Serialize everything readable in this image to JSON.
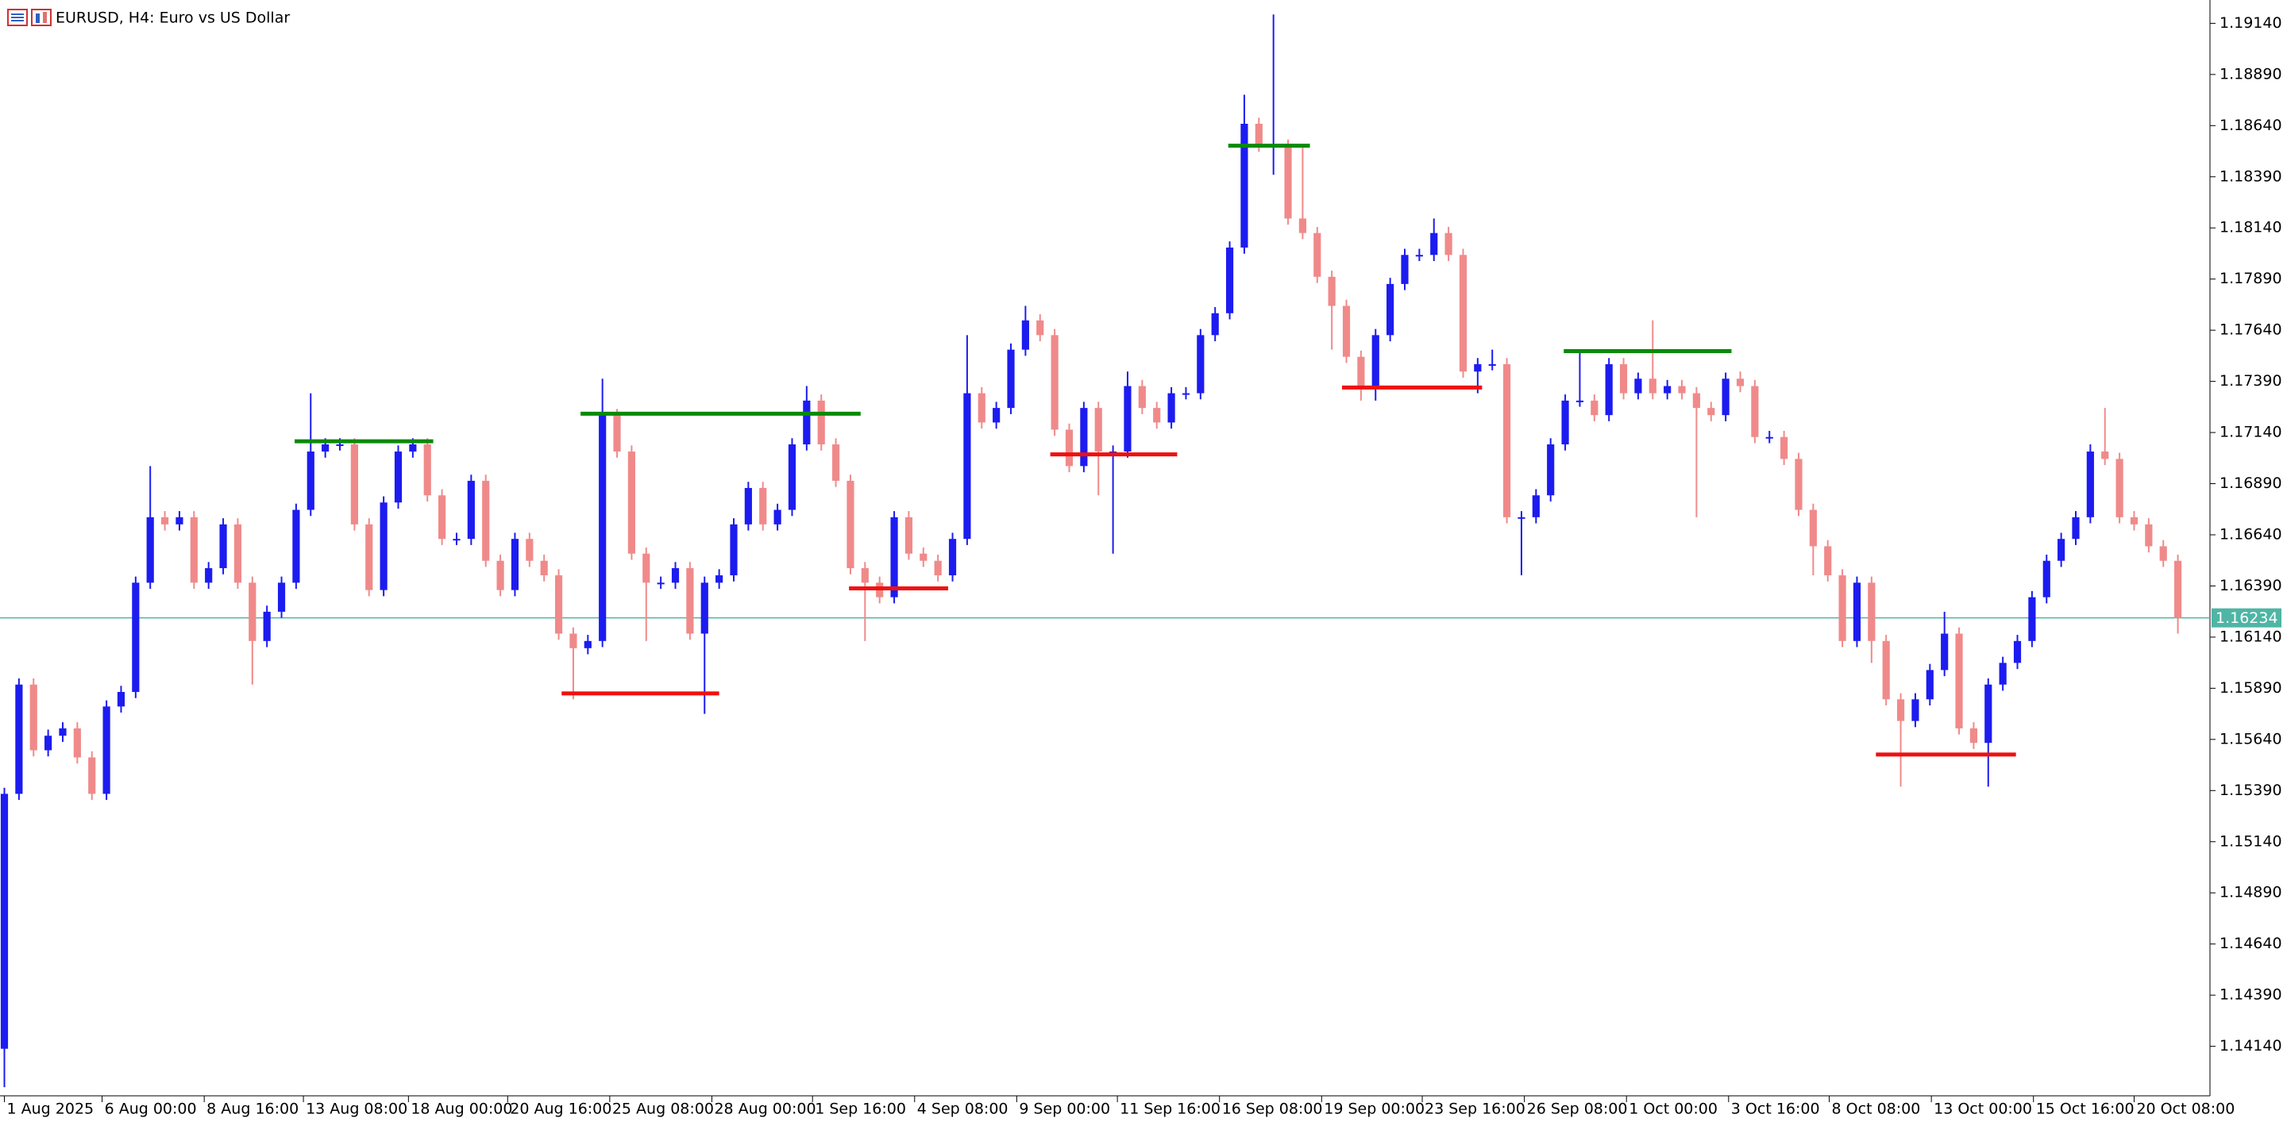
{
  "chart_data": {
    "type": "candlestick",
    "title": "EURUSD, H4:  Euro vs US Dollar",
    "up_color": "#1c1cf0",
    "down_color": "#f08a8a",
    "open": [
      1.14128,
      1.15374,
      1.15908,
      1.15587,
      1.15658,
      1.15694,
      1.15552,
      1.15374,
      1.15801,
      1.15872,
      1.16406,
      1.16726,
      1.16691,
      1.16726,
      1.16406,
      1.16477,
      1.16691,
      1.16406,
      1.16121,
      1.16264,
      1.16406,
      1.16762,
      1.17047,
      1.17082,
      1.17082,
      1.16691,
      1.1637,
      1.16798,
      1.17047,
      1.17082,
      1.16833,
      1.1662,
      1.1662,
      1.16904,
      1.16513,
      1.1637,
      1.1662,
      1.16513,
      1.16442,
      1.16157,
      1.16086,
      1.16121,
      1.17225,
      1.17047,
      1.16548,
      1.16406,
      1.16406,
      1.16477,
      1.16157,
      1.16406,
      1.16442,
      1.16691,
      1.16869,
      1.16691,
      1.16762,
      1.17082,
      1.17296,
      1.17082,
      1.16904,
      1.16477,
      1.16406,
      1.16335,
      1.16726,
      1.16548,
      1.16513,
      1.16442,
      1.1662,
      1.17332,
      1.17189,
      1.1726,
      1.17545,
      1.17688,
      1.17616,
      1.17154,
      1.16976,
      1.1726,
      1.17047,
      1.17047,
      1.17367,
      1.1726,
      1.17189,
      1.17332,
      1.17332,
      1.17616,
      1.17723,
      1.18044,
      1.18649,
      1.18542,
      1.18542,
      1.18186,
      1.18115,
      1.17901,
      1.17759,
      1.1751,
      1.17367,
      1.17616,
      1.17866,
      1.18008,
      1.18008,
      1.18115,
      1.18008,
      1.17438,
      1.17474,
      1.17474,
      1.16726,
      1.16726,
      1.16833,
      1.17082,
      1.17296,
      1.17296,
      1.17225,
      1.17474,
      1.17332,
      1.17403,
      1.17332,
      1.17367,
      1.17332,
      1.1726,
      1.17225,
      1.17403,
      1.17367,
      1.17118,
      1.17118,
      1.17011,
      1.16762,
      1.16584,
      1.16442,
      1.16121,
      1.16406,
      1.16121,
      1.15836,
      1.1573,
      1.15836,
      1.15979,
      1.16157,
      1.15694,
      1.15623,
      1.15908,
      1.16014,
      1.16121,
      1.16335,
      1.16513,
      1.1662,
      1.16726,
      1.17047,
      1.17011,
      1.16726,
      1.16691,
      1.16584,
      1.16513
    ],
    "high": [
      1.15404,
      1.15938,
      1.15938,
      1.15688,
      1.15724,
      1.15724,
      1.15582,
      1.15831,
      1.15902,
      1.16436,
      1.16976,
      1.16756,
      1.16756,
      1.16756,
      1.16507,
      1.16721,
      1.16721,
      1.16436,
      1.16294,
      1.16436,
      1.16792,
      1.17332,
      1.17112,
      1.17112,
      1.17112,
      1.16721,
      1.16828,
      1.17077,
      1.17112,
      1.17112,
      1.16863,
      1.1665,
      1.16934,
      1.16934,
      1.16543,
      1.1665,
      1.1665,
      1.16543,
      1.16472,
      1.16187,
      1.16151,
      1.17403,
      1.17255,
      1.17077,
      1.16578,
      1.16436,
      1.16507,
      1.16507,
      1.16436,
      1.16472,
      1.16721,
      1.16899,
      1.16899,
      1.16792,
      1.17112,
      1.17367,
      1.17326,
      1.17112,
      1.16934,
      1.16507,
      1.16436,
      1.16756,
      1.16756,
      1.16578,
      1.16543,
      1.1665,
      1.17616,
      1.17362,
      1.1729,
      1.17575,
      1.17759,
      1.17718,
      1.17646,
      1.17184,
      1.1729,
      1.1729,
      1.17077,
      1.17438,
      1.17397,
      1.1729,
      1.17362,
      1.17362,
      1.17646,
      1.17753,
      1.18074,
      1.18791,
      1.18679,
      1.19183,
      1.18572,
      1.18542,
      1.18145,
      1.17931,
      1.17789,
      1.1754,
      1.17646,
      1.17896,
      1.18038,
      1.18038,
      1.18186,
      1.18145,
      1.18038,
      1.17504,
      1.17545,
      1.17504,
      1.16756,
      1.16863,
      1.17112,
      1.17326,
      1.17545,
      1.17326,
      1.17504,
      1.17504,
      1.17433,
      1.17688,
      1.17397,
      1.17397,
      1.17362,
      1.1729,
      1.17433,
      1.17438,
      1.17397,
      1.17148,
      1.17148,
      1.17041,
      1.16792,
      1.16614,
      1.16472,
      1.16436,
      1.16436,
      1.16151,
      1.15866,
      1.15866,
      1.16009,
      1.16264,
      1.16187,
      1.15724,
      1.15938,
      1.16044,
      1.16151,
      1.16365,
      1.16543,
      1.1665,
      1.16756,
      1.17082,
      1.1726,
      1.17041,
      1.16756,
      1.16721,
      1.16614,
      1.16543
    ],
    "low": [
      1.1394,
      1.15344,
      1.15557,
      1.15557,
      1.15628,
      1.15522,
      1.15344,
      1.15344,
      1.15771,
      1.15842,
      1.16376,
      1.16661,
      1.16661,
      1.16376,
      1.16376,
      1.16447,
      1.16376,
      1.15908,
      1.16091,
      1.16234,
      1.16376,
      1.16732,
      1.17017,
      1.17052,
      1.16661,
      1.1634,
      1.1634,
      1.16768,
      1.17017,
      1.16803,
      1.1659,
      1.1659,
      1.1659,
      1.16483,
      1.1634,
      1.1634,
      1.16483,
      1.16412,
      1.16127,
      1.15836,
      1.16056,
      1.16091,
      1.17017,
      1.16518,
      1.16121,
      1.16376,
      1.16376,
      1.16127,
      1.15765,
      1.16376,
      1.16412,
      1.16661,
      1.16661,
      1.16661,
      1.16732,
      1.17052,
      1.17052,
      1.16874,
      1.16447,
      1.16121,
      1.16305,
      1.16305,
      1.16518,
      1.16483,
      1.16412,
      1.16412,
      1.1659,
      1.17159,
      1.17159,
      1.1723,
      1.17515,
      1.17586,
      1.17124,
      1.16946,
      1.16946,
      1.16833,
      1.16548,
      1.17017,
      1.1723,
      1.17159,
      1.17159,
      1.17302,
      1.17302,
      1.17586,
      1.17693,
      1.18014,
      1.18512,
      1.184,
      1.18156,
      1.18085,
      1.17871,
      1.17545,
      1.1748,
      1.17296,
      1.17296,
      1.17586,
      1.17836,
      1.17978,
      1.17978,
      1.17978,
      1.17408,
      1.17332,
      1.17444,
      1.16696,
      1.16442,
      1.16696,
      1.16803,
      1.17052,
      1.17266,
      1.17195,
      1.17195,
      1.17302,
      1.17302,
      1.17302,
      1.17302,
      1.17302,
      1.16726,
      1.17195,
      1.17195,
      1.17337,
      1.17088,
      1.17088,
      1.16981,
      1.16732,
      1.16442,
      1.16412,
      1.16091,
      1.16091,
      1.16014,
      1.15806,
      1.15409,
      1.157,
      1.15806,
      1.15949,
      1.15664,
      1.15593,
      1.15409,
      1.15878,
      1.15984,
      1.16091,
      1.16305,
      1.16483,
      1.1659,
      1.16696,
      1.16981,
      1.16696,
      1.16661,
      1.16554,
      1.16483,
      1.16157
    ],
    "close": [
      1.15374,
      1.15908,
      1.15587,
      1.15658,
      1.15694,
      1.15552,
      1.15374,
      1.15801,
      1.15872,
      1.16406,
      1.16726,
      1.16691,
      1.16726,
      1.16406,
      1.16477,
      1.16691,
      1.16406,
      1.16121,
      1.16264,
      1.16406,
      1.16762,
      1.17047,
      1.17082,
      1.17082,
      1.16691,
      1.1637,
      1.16798,
      1.17047,
      1.17082,
      1.16833,
      1.1662,
      1.1662,
      1.16904,
      1.16513,
      1.1637,
      1.1662,
      1.16513,
      1.16442,
      1.16157,
      1.16086,
      1.16121,
      1.17225,
      1.17047,
      1.16548,
      1.16406,
      1.16406,
      1.16477,
      1.16157,
      1.16406,
      1.16442,
      1.16691,
      1.16869,
      1.16691,
      1.16762,
      1.17082,
      1.17296,
      1.17082,
      1.16904,
      1.16477,
      1.16406,
      1.16335,
      1.16726,
      1.16548,
      1.16513,
      1.16442,
      1.1662,
      1.17332,
      1.17189,
      1.1726,
      1.17545,
      1.17688,
      1.17616,
      1.17154,
      1.16976,
      1.1726,
      1.17047,
      1.17047,
      1.17367,
      1.1726,
      1.17189,
      1.17332,
      1.17332,
      1.17616,
      1.17723,
      1.18044,
      1.18649,
      1.18542,
      1.18542,
      1.18186,
      1.18115,
      1.17901,
      1.17759,
      1.1751,
      1.17367,
      1.17616,
      1.17866,
      1.18008,
      1.18008,
      1.18115,
      1.18008,
      1.17438,
      1.17474,
      1.17474,
      1.16726,
      1.16726,
      1.16833,
      1.17082,
      1.17296,
      1.17296,
      1.17225,
      1.17474,
      1.17332,
      1.17403,
      1.17332,
      1.17367,
      1.17332,
      1.1726,
      1.17225,
      1.17403,
      1.17367,
      1.17118,
      1.17118,
      1.17011,
      1.16762,
      1.16584,
      1.16442,
      1.16121,
      1.16406,
      1.16121,
      1.15836,
      1.1573,
      1.15836,
      1.15979,
      1.16157,
      1.15694,
      1.15623,
      1.15908,
      1.16014,
      1.16121,
      1.16335,
      1.16513,
      1.1662,
      1.16726,
      1.17047,
      1.17011,
      1.16726,
      1.16691,
      1.16584,
      1.16513,
      1.16234
    ],
    "levels": [
      {
        "price": 1.17097,
        "from": 19.9,
        "to": 29.4,
        "color": "#0a8a0a"
      },
      {
        "price": 1.17232,
        "from": 39.5,
        "to": 58.7,
        "color": "#0a8a0a"
      },
      {
        "price": 1.15865,
        "from": 38.2,
        "to": 49.0,
        "color": "#f01010"
      },
      {
        "price": 1.16378,
        "from": 57.9,
        "to": 64.7,
        "color": "#f01010"
      },
      {
        "price": 1.17033,
        "from": 71.7,
        "to": 80.4,
        "color": "#f01010"
      },
      {
        "price": 1.18542,
        "from": 83.9,
        "to": 89.5,
        "color": "#0a8a0a"
      },
      {
        "price": 1.1736,
        "from": 91.7,
        "to": 101.3,
        "color": "#f01010"
      },
      {
        "price": 1.17538,
        "from": 106.9,
        "to": 118.4,
        "color": "#0a8a0a"
      },
      {
        "price": 1.15566,
        "from": 128.3,
        "to": 137.9,
        "color": "#f01010"
      }
    ],
    "current_price": 1.16234,
    "current_price_color": "#4fb5a5",
    "ylim": [
      1.13898,
      1.19254
    ],
    "yticks": [
      {
        "value": 1.1914,
        "label": "1.19140"
      },
      {
        "value": 1.1889,
        "label": "1.18890"
      },
      {
        "value": 1.1864,
        "label": "1.18640"
      },
      {
        "value": 1.1839,
        "label": "1.18390"
      },
      {
        "value": 1.1814,
        "label": "1.18140"
      },
      {
        "value": 1.1789,
        "label": "1.17890"
      },
      {
        "value": 1.1764,
        "label": "1.17640"
      },
      {
        "value": 1.1739,
        "label": "1.17390"
      },
      {
        "value": 1.1714,
        "label": "1.17140"
      },
      {
        "value": 1.1689,
        "label": "1.16890"
      },
      {
        "value": 1.1664,
        "label": "1.16640"
      },
      {
        "value": 1.1639,
        "label": "1.16390"
      },
      {
        "value": 1.1614,
        "label": "1.16140"
      },
      {
        "value": 1.1589,
        "label": "1.15890"
      },
      {
        "value": 1.1564,
        "label": "1.15640"
      },
      {
        "value": 1.1539,
        "label": "1.15390"
      },
      {
        "value": 1.1514,
        "label": "1.15140"
      },
      {
        "value": 1.1489,
        "label": "1.14890"
      },
      {
        "value": 1.1464,
        "label": "1.14640"
      },
      {
        "value": 1.1439,
        "label": "1.14390"
      },
      {
        "value": 1.1414,
        "label": "1.14140"
      }
    ],
    "xlim": [
      -0.3,
      151.2
    ],
    "xticks": [
      {
        "value": 0,
        "label": "1 Aug 2025"
      },
      {
        "value": 6.7,
        "label": "6 Aug 00:00"
      },
      {
        "value": 13.7,
        "label": "8 Aug 16:00"
      },
      {
        "value": 20.5,
        "label": "13 Aug 08:00"
      },
      {
        "value": 27.7,
        "label": "18 Aug 00:00"
      },
      {
        "value": 34.5,
        "label": "20 Aug 16:00"
      },
      {
        "value": 41.5,
        "label": "25 Aug 08:00"
      },
      {
        "value": 48.5,
        "label": "28 Aug 00:00"
      },
      {
        "value": 55.4,
        "label": "1 Sep 16:00"
      },
      {
        "value": 62.4,
        "label": "4 Sep 08:00"
      },
      {
        "value": 69.4,
        "label": "9 Sep 00:00"
      },
      {
        "value": 76.3,
        "label": "11 Sep 16:00"
      },
      {
        "value": 83.3,
        "label": "16 Sep 08:00"
      },
      {
        "value": 90.3,
        "label": "19 Sep 00:00"
      },
      {
        "value": 97.2,
        "label": "23 Sep 16:00"
      },
      {
        "value": 104.2,
        "label": "26 Sep 08:00"
      },
      {
        "value": 111.2,
        "label": "1 Oct 00:00"
      },
      {
        "value": 118.2,
        "label": "3 Oct 16:00"
      },
      {
        "value": 125.1,
        "label": "8 Oct 08:00"
      },
      {
        "value": 132.1,
        "label": "13 Oct 00:00"
      },
      {
        "value": 139.1,
        "label": "15 Oct 16:00"
      },
      {
        "value": 146,
        "label": "20 Oct 08:00"
      }
    ]
  }
}
